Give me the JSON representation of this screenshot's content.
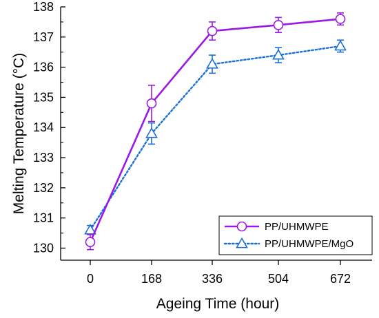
{
  "chart_data": {
    "type": "line",
    "title": "",
    "xlabel": "Ageing Time (hour)",
    "ylabel": "Melting Temperature (°C)",
    "x": [
      0,
      168,
      336,
      504,
      672
    ],
    "x_ticks": [
      "0",
      "168",
      "336",
      "504",
      "672"
    ],
    "y_ticks": [
      "130",
      "131",
      "132",
      "133",
      "134",
      "135",
      "136",
      "137",
      "138"
    ],
    "ylim": [
      129.6,
      138.0
    ],
    "legend_position": "bottom-right",
    "grid": false,
    "series": [
      {
        "name": "PP/UHMWPE",
        "color": "#9b19e6",
        "line_style": "solid",
        "marker": "circle",
        "values": [
          130.2,
          134.8,
          137.2,
          137.4,
          137.6
        ],
        "errors": [
          0.25,
          0.6,
          0.3,
          0.25,
          0.2
        ]
      },
      {
        "name": "PP/UHMWPE/MgO",
        "color": "#1a6fd6",
        "line_style": "dotted",
        "marker": "triangle",
        "values": [
          130.6,
          133.8,
          136.1,
          136.4,
          136.7
        ],
        "errors": [
          0.15,
          0.35,
          0.3,
          0.25,
          0.2
        ]
      }
    ]
  }
}
